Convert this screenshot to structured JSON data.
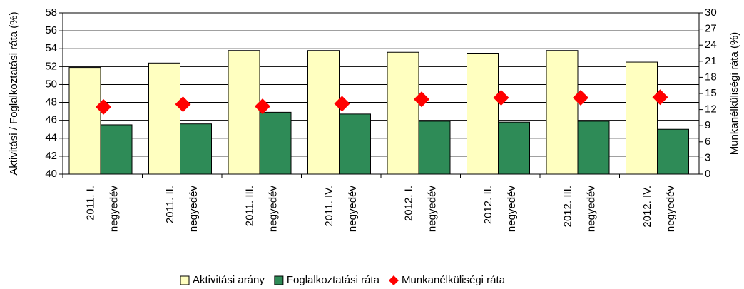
{
  "chart_data": {
    "type": "bar",
    "categories": [
      [
        "2011. I.",
        "negyedév"
      ],
      [
        "2011. II.",
        "negyedév"
      ],
      [
        "2011. III.",
        "negyedév"
      ],
      [
        "2011. IV.",
        "negyedév"
      ],
      [
        "2012. I.",
        "negyedév"
      ],
      [
        "2012. II.",
        "negyedév"
      ],
      [
        "2012. III.",
        "negyedév"
      ],
      [
        "2012. IV.",
        "negyedév"
      ]
    ],
    "series": [
      {
        "name": "Aktivitási arány",
        "color": "#ffffc0",
        "values": [
          51.9,
          52.4,
          53.8,
          53.8,
          53.6,
          53.5,
          53.8,
          52.5
        ]
      },
      {
        "name": "Foglalkoztatási ráta",
        "color": "#2e8b57",
        "values": [
          45.5,
          45.6,
          46.9,
          46.7,
          45.9,
          45.8,
          45.9,
          45.0
        ]
      },
      {
        "name": "Munkanélküliségi ráta",
        "color": "#ff0000",
        "type": "scatter",
        "axis": "y2",
        "values": [
          12.5,
          13.0,
          12.6,
          13.1,
          13.9,
          14.2,
          14.2,
          14.3
        ]
      }
    ],
    "ylabel": "Aktivitási / Foglalkoztatási ráta (%)",
    "y2label": "Munkanélküliségi ráta (%)",
    "ylim": [
      40,
      58
    ],
    "yticks": [
      40,
      42,
      44,
      46,
      48,
      50,
      52,
      54,
      56,
      58
    ],
    "y2lim": [
      0,
      30
    ],
    "y2ticks": [
      0,
      3,
      6,
      9,
      12,
      15,
      18,
      21,
      24,
      27,
      30
    ],
    "grid": true,
    "legend": "bottom"
  }
}
